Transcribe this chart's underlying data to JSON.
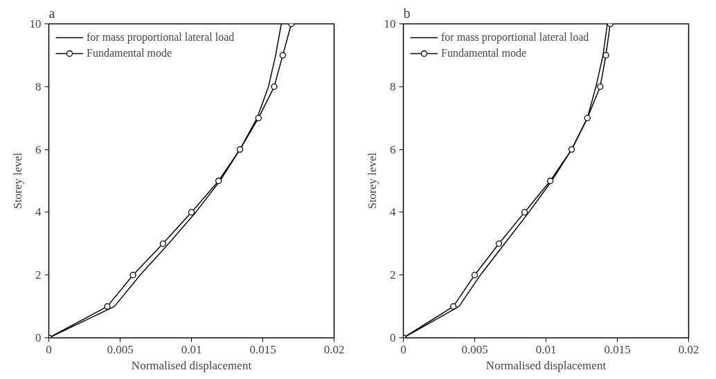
{
  "chart_data": [
    {
      "type": "line",
      "title": "a",
      "xlabel": "Normalised displacement",
      "ylabel": "Storey level",
      "xlim": [
        0,
        0.02
      ],
      "ylim": [
        0,
        10
      ],
      "xticks": [
        0,
        0.005,
        0.01,
        0.015,
        0.02
      ],
      "yticks": [
        0,
        2,
        4,
        6,
        8,
        10
      ],
      "grid": false,
      "legend": "top left",
      "line_style": "solid",
      "series": [
        {
          "name": "for mass proportional lateral load",
          "color": "#000000",
          "marker": "none",
          "x": [
            0,
            0.0046,
            0.0064,
            0.0084,
            0.0103,
            0.012,
            0.0134,
            0.0146,
            0.0154,
            0.0159,
            0.0163
          ],
          "values": [
            0,
            1,
            2,
            3,
            4,
            5,
            6,
            7,
            8,
            9,
            10
          ]
        },
        {
          "name": "Fundamental mode",
          "color": "#000000",
          "marker": "circle",
          "x": [
            0,
            0.0041,
            0.0059,
            0.008,
            0.01,
            0.0119,
            0.0134,
            0.0147,
            0.0158,
            0.0164,
            0.017
          ],
          "values": [
            0,
            1,
            2,
            3,
            4,
            5,
            6,
            7,
            8,
            9,
            10
          ]
        }
      ]
    },
    {
      "type": "line",
      "title": "b",
      "xlabel": "Normalised displacement",
      "ylabel": "Storey level",
      "xlim": [
        0,
        0.02
      ],
      "ylim": [
        0,
        10
      ],
      "xticks": [
        0,
        0.005,
        0.01,
        0.015,
        0.02
      ],
      "yticks": [
        0,
        2,
        4,
        6,
        8,
        10
      ],
      "grid": false,
      "legend": "top left",
      "line_style": "solid",
      "series": [
        {
          "name": "for mass proportional lateral load",
          "color": "#000000",
          "marker": "none",
          "x": [
            0,
            0.0039,
            0.0054,
            0.0071,
            0.0088,
            0.0104,
            0.0118,
            0.0129,
            0.0135,
            0.014,
            0.0143
          ],
          "values": [
            0,
            1,
            2,
            3,
            4,
            5,
            6,
            7,
            8,
            9,
            10
          ]
        },
        {
          "name": "Fundamental mode",
          "color": "#000000",
          "marker": "circle",
          "x": [
            0,
            0.0035,
            0.005,
            0.0067,
            0.0085,
            0.0103,
            0.0118,
            0.0129,
            0.0138,
            0.0142,
            0.0145
          ],
          "values": [
            0,
            1,
            2,
            3,
            4,
            5,
            6,
            7,
            8,
            9,
            10
          ]
        }
      ]
    }
  ]
}
